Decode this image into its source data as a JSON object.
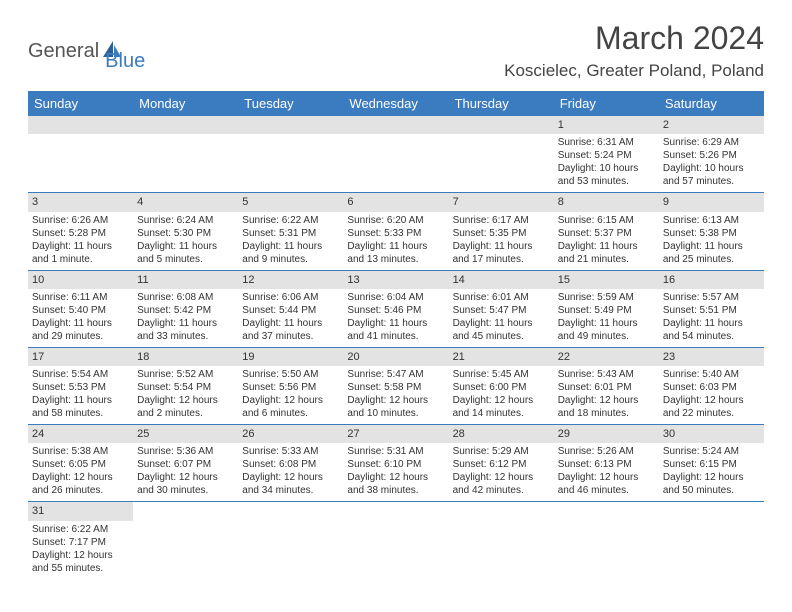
{
  "logo": {
    "text1": "General",
    "text2": "Blue"
  },
  "title": "March 2024",
  "location": "Koscielec, Greater Poland, Poland",
  "colors": {
    "header_bg": "#3b7bbf",
    "header_text": "#ffffff",
    "date_bg": "#e3e3e3",
    "border": "#3b7bbf"
  },
  "day_headers": [
    "Sunday",
    "Monday",
    "Tuesday",
    "Wednesday",
    "Thursday",
    "Friday",
    "Saturday"
  ],
  "weeks": [
    [
      null,
      null,
      null,
      null,
      null,
      {
        "date": "1",
        "sunrise": "Sunrise: 6:31 AM",
        "sunset": "Sunset: 5:24 PM",
        "daylight": "Daylight: 10 hours and 53 minutes."
      },
      {
        "date": "2",
        "sunrise": "Sunrise: 6:29 AM",
        "sunset": "Sunset: 5:26 PM",
        "daylight": "Daylight: 10 hours and 57 minutes."
      }
    ],
    [
      {
        "date": "3",
        "sunrise": "Sunrise: 6:26 AM",
        "sunset": "Sunset: 5:28 PM",
        "daylight": "Daylight: 11 hours and 1 minute."
      },
      {
        "date": "4",
        "sunrise": "Sunrise: 6:24 AM",
        "sunset": "Sunset: 5:30 PM",
        "daylight": "Daylight: 11 hours and 5 minutes."
      },
      {
        "date": "5",
        "sunrise": "Sunrise: 6:22 AM",
        "sunset": "Sunset: 5:31 PM",
        "daylight": "Daylight: 11 hours and 9 minutes."
      },
      {
        "date": "6",
        "sunrise": "Sunrise: 6:20 AM",
        "sunset": "Sunset: 5:33 PM",
        "daylight": "Daylight: 11 hours and 13 minutes."
      },
      {
        "date": "7",
        "sunrise": "Sunrise: 6:17 AM",
        "sunset": "Sunset: 5:35 PM",
        "daylight": "Daylight: 11 hours and 17 minutes."
      },
      {
        "date": "8",
        "sunrise": "Sunrise: 6:15 AM",
        "sunset": "Sunset: 5:37 PM",
        "daylight": "Daylight: 11 hours and 21 minutes."
      },
      {
        "date": "9",
        "sunrise": "Sunrise: 6:13 AM",
        "sunset": "Sunset: 5:38 PM",
        "daylight": "Daylight: 11 hours and 25 minutes."
      }
    ],
    [
      {
        "date": "10",
        "sunrise": "Sunrise: 6:11 AM",
        "sunset": "Sunset: 5:40 PM",
        "daylight": "Daylight: 11 hours and 29 minutes."
      },
      {
        "date": "11",
        "sunrise": "Sunrise: 6:08 AM",
        "sunset": "Sunset: 5:42 PM",
        "daylight": "Daylight: 11 hours and 33 minutes."
      },
      {
        "date": "12",
        "sunrise": "Sunrise: 6:06 AM",
        "sunset": "Sunset: 5:44 PM",
        "daylight": "Daylight: 11 hours and 37 minutes."
      },
      {
        "date": "13",
        "sunrise": "Sunrise: 6:04 AM",
        "sunset": "Sunset: 5:46 PM",
        "daylight": "Daylight: 11 hours and 41 minutes."
      },
      {
        "date": "14",
        "sunrise": "Sunrise: 6:01 AM",
        "sunset": "Sunset: 5:47 PM",
        "daylight": "Daylight: 11 hours and 45 minutes."
      },
      {
        "date": "15",
        "sunrise": "Sunrise: 5:59 AM",
        "sunset": "Sunset: 5:49 PM",
        "daylight": "Daylight: 11 hours and 49 minutes."
      },
      {
        "date": "16",
        "sunrise": "Sunrise: 5:57 AM",
        "sunset": "Sunset: 5:51 PM",
        "daylight": "Daylight: 11 hours and 54 minutes."
      }
    ],
    [
      {
        "date": "17",
        "sunrise": "Sunrise: 5:54 AM",
        "sunset": "Sunset: 5:53 PM",
        "daylight": "Daylight: 11 hours and 58 minutes."
      },
      {
        "date": "18",
        "sunrise": "Sunrise: 5:52 AM",
        "sunset": "Sunset: 5:54 PM",
        "daylight": "Daylight: 12 hours and 2 minutes."
      },
      {
        "date": "19",
        "sunrise": "Sunrise: 5:50 AM",
        "sunset": "Sunset: 5:56 PM",
        "daylight": "Daylight: 12 hours and 6 minutes."
      },
      {
        "date": "20",
        "sunrise": "Sunrise: 5:47 AM",
        "sunset": "Sunset: 5:58 PM",
        "daylight": "Daylight: 12 hours and 10 minutes."
      },
      {
        "date": "21",
        "sunrise": "Sunrise: 5:45 AM",
        "sunset": "Sunset: 6:00 PM",
        "daylight": "Daylight: 12 hours and 14 minutes."
      },
      {
        "date": "22",
        "sunrise": "Sunrise: 5:43 AM",
        "sunset": "Sunset: 6:01 PM",
        "daylight": "Daylight: 12 hours and 18 minutes."
      },
      {
        "date": "23",
        "sunrise": "Sunrise: 5:40 AM",
        "sunset": "Sunset: 6:03 PM",
        "daylight": "Daylight: 12 hours and 22 minutes."
      }
    ],
    [
      {
        "date": "24",
        "sunrise": "Sunrise: 5:38 AM",
        "sunset": "Sunset: 6:05 PM",
        "daylight": "Daylight: 12 hours and 26 minutes."
      },
      {
        "date": "25",
        "sunrise": "Sunrise: 5:36 AM",
        "sunset": "Sunset: 6:07 PM",
        "daylight": "Daylight: 12 hours and 30 minutes."
      },
      {
        "date": "26",
        "sunrise": "Sunrise: 5:33 AM",
        "sunset": "Sunset: 6:08 PM",
        "daylight": "Daylight: 12 hours and 34 minutes."
      },
      {
        "date": "27",
        "sunrise": "Sunrise: 5:31 AM",
        "sunset": "Sunset: 6:10 PM",
        "daylight": "Daylight: 12 hours and 38 minutes."
      },
      {
        "date": "28",
        "sunrise": "Sunrise: 5:29 AM",
        "sunset": "Sunset: 6:12 PM",
        "daylight": "Daylight: 12 hours and 42 minutes."
      },
      {
        "date": "29",
        "sunrise": "Sunrise: 5:26 AM",
        "sunset": "Sunset: 6:13 PM",
        "daylight": "Daylight: 12 hours and 46 minutes."
      },
      {
        "date": "30",
        "sunrise": "Sunrise: 5:24 AM",
        "sunset": "Sunset: 6:15 PM",
        "daylight": "Daylight: 12 hours and 50 minutes."
      }
    ],
    [
      {
        "date": "31",
        "sunrise": "Sunrise: 6:22 AM",
        "sunset": "Sunset: 7:17 PM",
        "daylight": "Daylight: 12 hours and 55 minutes."
      },
      null,
      null,
      null,
      null,
      null,
      null
    ]
  ]
}
